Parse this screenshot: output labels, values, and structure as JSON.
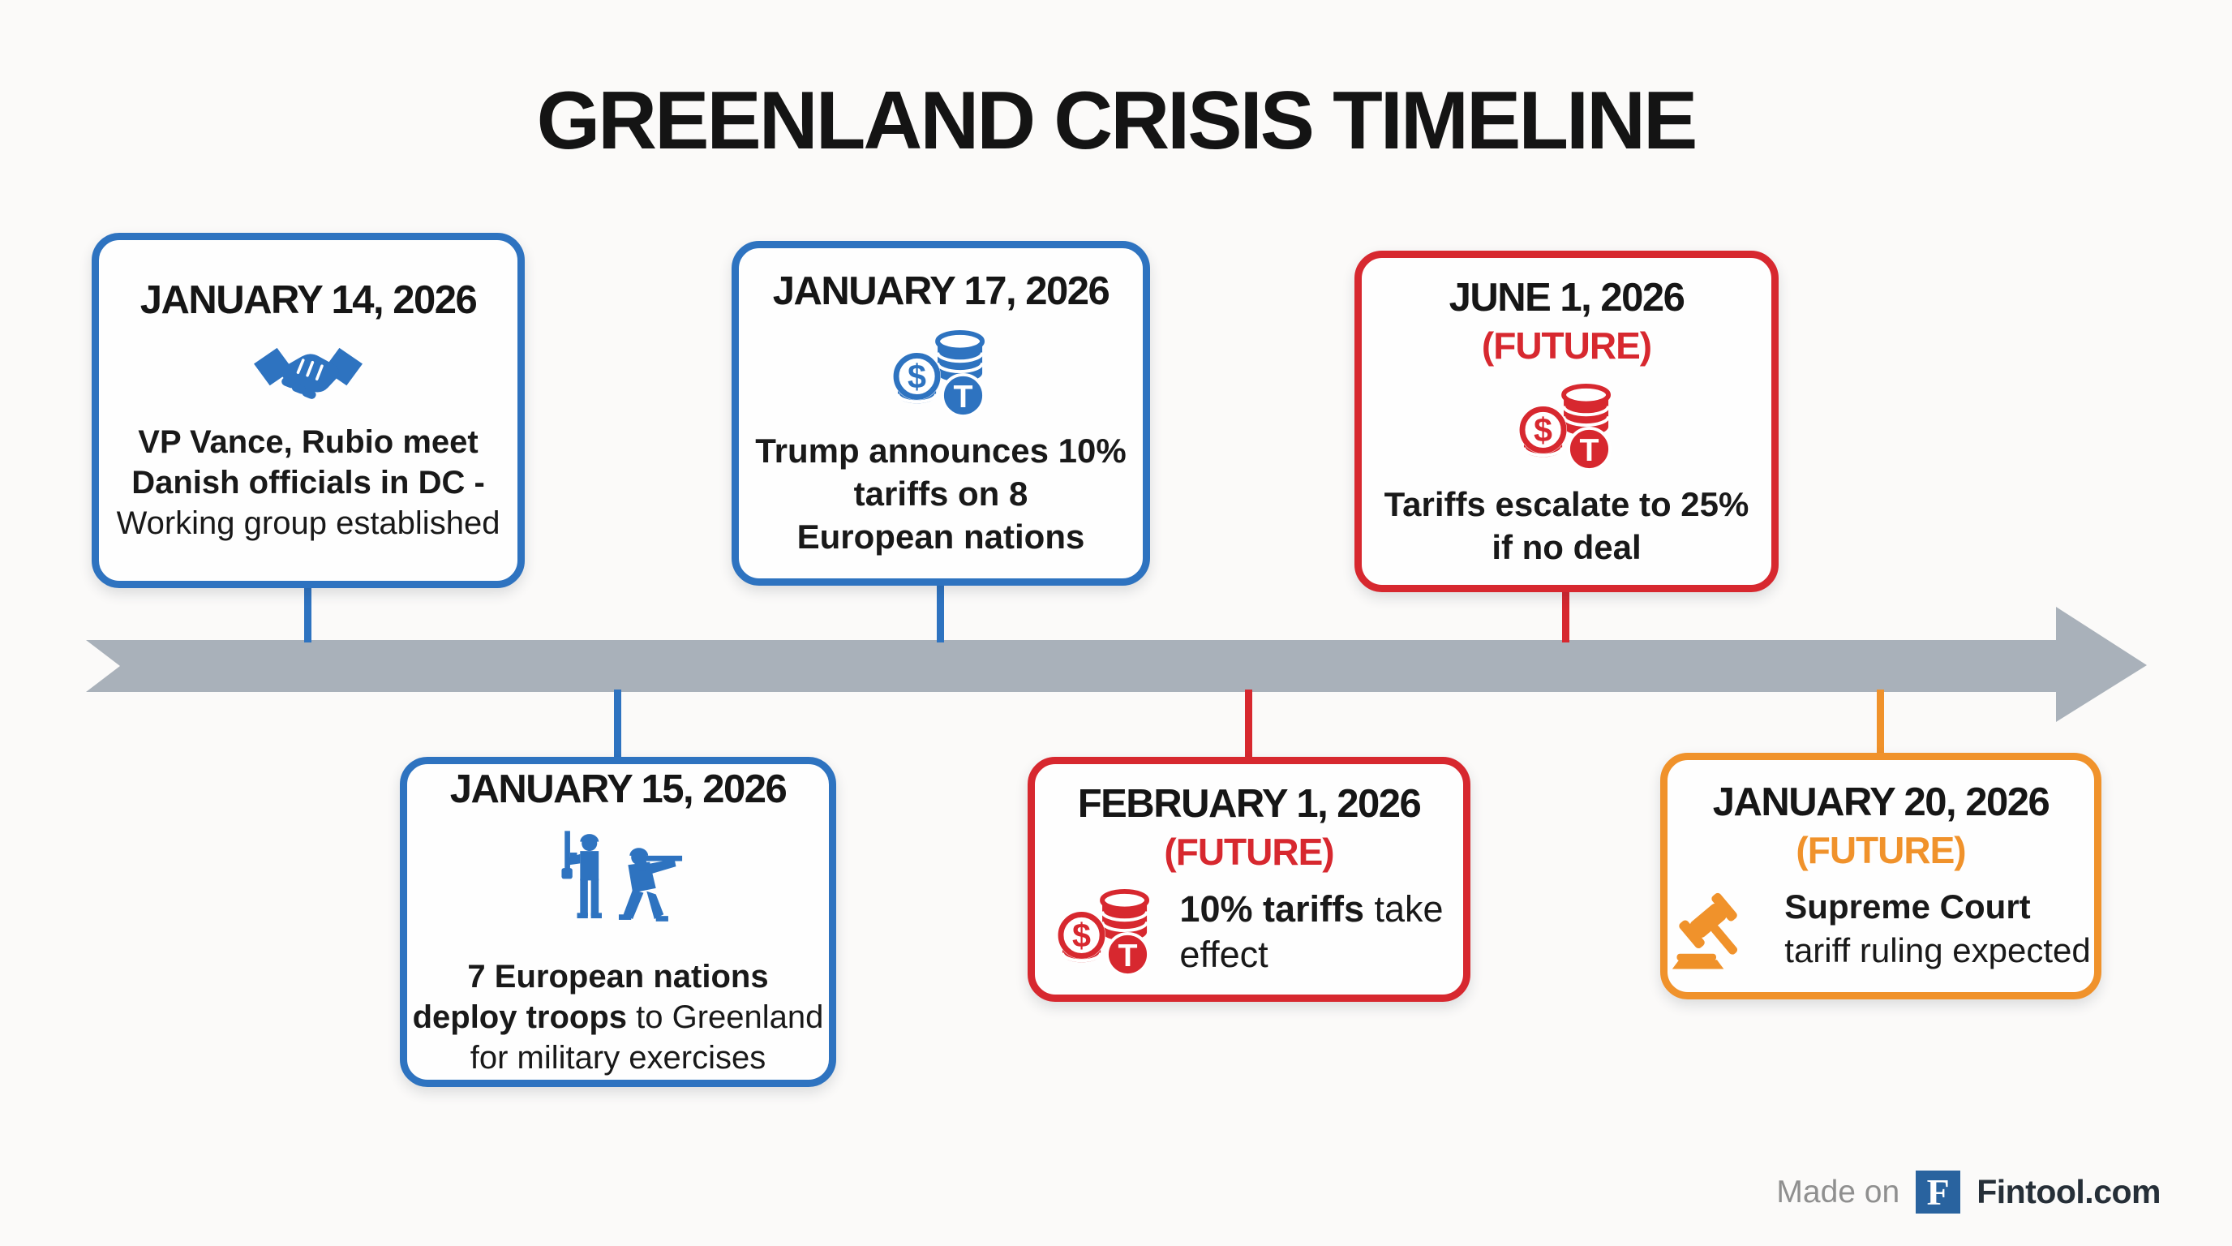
{
  "title": "GREENLAND CRISIS TIMELINE",
  "colors": {
    "blue": "#2e73c0",
    "red": "#d7282f",
    "orange": "#f0922b",
    "timeline_gray": "#a9b1ba"
  },
  "events": [
    {
      "id": "jan14",
      "date": "JANUARY 14, 2026",
      "future": null,
      "icon": "handshake-icon",
      "color": "blue",
      "layout": "column",
      "lines": [
        [
          {
            "t": "VP Vance, Rubio meet",
            "b": true
          }
        ],
        [
          {
            "t": "Danish officials in DC -",
            "b": true
          }
        ],
        [
          {
            "t": "Working group established",
            "b": false
          }
        ]
      ]
    },
    {
      "id": "jan17",
      "date": "JANUARY 17, 2026",
      "future": null,
      "icon": "coins-icon",
      "color": "blue",
      "layout": "column",
      "lines": [
        [
          {
            "t": "Trump announces 10%",
            "b": true
          }
        ],
        [
          {
            "t": "tariffs on 8",
            "b": true
          }
        ],
        [
          {
            "t": "European nations",
            "b": true
          }
        ]
      ]
    },
    {
      "id": "jun1",
      "date": "JUNE 1, 2026",
      "future": "(FUTURE)",
      "icon": "coins-icon",
      "color": "red",
      "layout": "column",
      "lines": [
        [
          {
            "t": "Tariffs escalate to 25%",
            "b": true
          }
        ],
        [
          {
            "t": "if no deal",
            "b": true
          }
        ]
      ]
    },
    {
      "id": "jan15",
      "date": "JANUARY 15, 2026",
      "future": null,
      "icon": "soldiers-icon",
      "color": "blue",
      "layout": "column",
      "lines": [
        [
          {
            "t": "7 European nations",
            "b": true
          }
        ],
        [
          {
            "t": "deploy troops",
            "b": true
          },
          {
            "t": " to Greenland",
            "b": false
          }
        ],
        [
          {
            "t": "for military exercises",
            "b": false
          }
        ]
      ]
    },
    {
      "id": "feb1",
      "date": "FEBRUARY 1, 2026",
      "future": "(FUTURE)",
      "icon": "coins-icon",
      "color": "red",
      "layout": "row",
      "lines": [
        [
          {
            "t": "10% tariffs",
            "b": true
          },
          {
            "t": " take",
            "b": false
          }
        ],
        [
          {
            "t": "effect",
            "b": false
          }
        ]
      ]
    },
    {
      "id": "jan20",
      "date": "JANUARY 20, 2026",
      "future": "(FUTURE)",
      "icon": "gavel-icon",
      "color": "orange",
      "layout": "row",
      "lines": [
        [
          {
            "t": "Supreme Court",
            "b": true
          }
        ],
        [
          {
            "t": "tariff ruling expected",
            "b": false
          }
        ]
      ]
    }
  ],
  "footer": {
    "made_on": "Made on",
    "logo_letter": "F",
    "brand": "Fintool.com"
  }
}
